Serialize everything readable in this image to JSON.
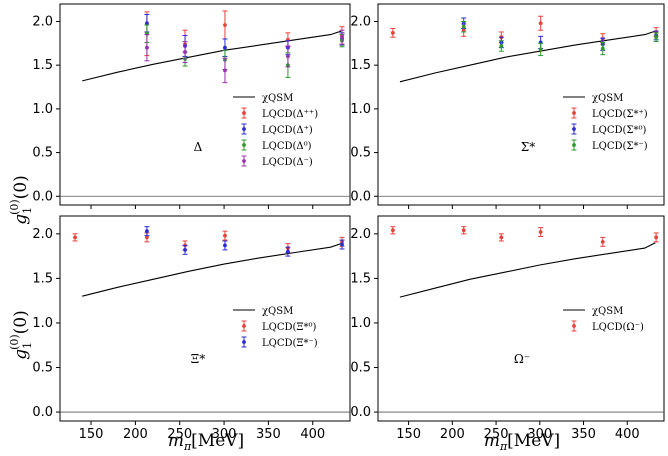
{
  "figure": {
    "ylabel_main": "g",
    "ylabel_sub": "1",
    "ylabel_sup": "(0)",
    "ylabel_arg": "(0)",
    "xlabel_main": "m",
    "xlabel_sub": "π",
    "xlabel_unit": "[MeV]"
  },
  "chart_data": [
    {
      "type": "scatter",
      "panel": "Delta",
      "label": "Δ",
      "xlim": [
        115,
        442
      ],
      "ylim": [
        -0.1,
        2.2
      ],
      "xticks": [
        150,
        200,
        250,
        300,
        350,
        400
      ],
      "yticks": [
        0.0,
        0.5,
        1.0,
        1.5,
        2.0
      ],
      "xtick_labels": [
        "",
        "",
        "",
        "",
        "",
        ""
      ],
      "ytick_labels": [
        "0.0",
        "0.5",
        "1.0",
        "1.5",
        "2.0"
      ],
      "curve": {
        "name": "χQSM",
        "x": [
          140,
          180,
          220,
          260,
          300,
          340,
          380,
          420,
          432
        ],
        "y": [
          1.32,
          1.42,
          1.51,
          1.59,
          1.67,
          1.73,
          1.79,
          1.85,
          1.89
        ]
      },
      "series": [
        {
          "name": "LQCD(Δ⁺⁺)",
          "color": "#e8413c",
          "x": [
            213,
            256,
            301,
            372,
            433
          ],
          "y": [
            1.86,
            1.74,
            1.96,
            1.79,
            1.84
          ],
          "err": [
            0.25,
            0.16,
            0.16,
            0.08,
            0.1
          ]
        },
        {
          "name": "LQCD(Δ⁺)",
          "color": "#2b2bd6",
          "x": [
            213,
            256,
            301,
            372,
            433
          ],
          "y": [
            1.98,
            1.72,
            1.7,
            1.7,
            1.8
          ],
          "err": [
            0.1,
            0.12,
            0.1,
            0.08,
            0.07
          ]
        },
        {
          "name": "LQCD(Δ⁰)",
          "color": "#2e9a2e",
          "x": [
            213,
            256,
            301,
            372,
            433
          ],
          "y": [
            1.86,
            1.57,
            1.56,
            1.5,
            1.78
          ],
          "err": [
            0.1,
            0.08,
            0.11,
            0.14,
            0.07
          ]
        },
        {
          "name": "LQCD(Δ⁻)",
          "color": "#9b30b0",
          "x": [
            213,
            256,
            301,
            372,
            433
          ],
          "y": [
            1.7,
            1.65,
            1.44,
            1.6,
            1.82
          ],
          "err": [
            0.15,
            0.12,
            0.14,
            0.12,
            0.08
          ]
        }
      ]
    },
    {
      "type": "scatter",
      "panel": "SigmaStar",
      "label": "Σ*",
      "xlim": [
        115,
        442
      ],
      "ylim": [
        -0.1,
        2.2
      ],
      "xticks": [
        150,
        200,
        250,
        300,
        350,
        400
      ],
      "yticks": [
        0.0,
        0.5,
        1.0,
        1.5,
        2.0
      ],
      "xtick_labels": [
        "",
        "",
        "",
        "",
        "",
        ""
      ],
      "ytick_labels": [
        "0.0",
        "0.5",
        "1.0",
        "1.5",
        "2.0"
      ],
      "curve": {
        "name": "χQSM",
        "x": [
          140,
          180,
          220,
          260,
          300,
          340,
          380,
          420,
          432
        ],
        "y": [
          1.31,
          1.41,
          1.5,
          1.59,
          1.66,
          1.73,
          1.79,
          1.85,
          1.89
        ]
      },
      "series": [
        {
          "name": "LQCD(Σ*⁺)",
          "color": "#e8413c",
          "x": [
            132,
            213,
            256,
            301,
            372,
            433
          ],
          "y": [
            1.87,
            1.9,
            1.82,
            1.98,
            1.8,
            1.88
          ],
          "err": [
            0.05,
            0.07,
            0.06,
            0.08,
            0.06,
            0.05
          ]
        },
        {
          "name": "LQCD(Σ*⁰)",
          "color": "#2b2bd6",
          "x": [
            213,
            256,
            301,
            372,
            433
          ],
          "y": [
            1.98,
            1.76,
            1.76,
            1.74,
            1.84
          ],
          "err": [
            0.06,
            0.06,
            0.07,
            0.07,
            0.05
          ]
        },
        {
          "name": "LQCD(Σ*⁻)",
          "color": "#2e9a2e",
          "x": [
            213,
            256,
            301,
            372,
            433
          ],
          "y": [
            1.94,
            1.72,
            1.68,
            1.69,
            1.82
          ],
          "err": [
            0.06,
            0.06,
            0.07,
            0.07,
            0.05
          ]
        }
      ]
    },
    {
      "type": "scatter",
      "panel": "XiStar",
      "label": "Ξ*",
      "xlim": [
        115,
        442
      ],
      "ylim": [
        -0.1,
        2.2
      ],
      "xticks": [
        150,
        200,
        250,
        300,
        350,
        400
      ],
      "yticks": [
        0.0,
        0.5,
        1.0,
        1.5,
        2.0
      ],
      "xtick_labels": [
        "150",
        "200",
        "250",
        "300",
        "350",
        "400"
      ],
      "ytick_labels": [
        "0.0",
        "0.5",
        "1.0",
        "1.5",
        "2.0"
      ],
      "curve": {
        "name": "χQSM",
        "x": [
          140,
          180,
          220,
          260,
          300,
          340,
          380,
          420,
          432
        ],
        "y": [
          1.3,
          1.4,
          1.49,
          1.58,
          1.66,
          1.73,
          1.79,
          1.85,
          1.89
        ]
      },
      "series": [
        {
          "name": "LQCD(Ξ*⁰)",
          "color": "#e8413c",
          "x": [
            132,
            213,
            256,
            301,
            372,
            433
          ],
          "y": [
            1.96,
            1.96,
            1.87,
            1.98,
            1.84,
            1.91
          ],
          "err": [
            0.04,
            0.05,
            0.05,
            0.05,
            0.05,
            0.05
          ]
        },
        {
          "name": "LQCD(Ξ*⁻)",
          "color": "#2b2bd6",
          "x": [
            213,
            256,
            301,
            372,
            433
          ],
          "y": [
            2.03,
            1.82,
            1.87,
            1.8,
            1.88
          ],
          "err": [
            0.05,
            0.05,
            0.05,
            0.05,
            0.05
          ]
        }
      ]
    },
    {
      "type": "scatter",
      "panel": "Omega",
      "label": "Ω⁻",
      "xlim": [
        115,
        442
      ],
      "ylim": [
        -0.1,
        2.2
      ],
      "xticks": [
        150,
        200,
        250,
        300,
        350,
        400
      ],
      "yticks": [
        0.0,
        0.5,
        1.0,
        1.5,
        2.0
      ],
      "xtick_labels": [
        "150",
        "200",
        "250",
        "300",
        "350",
        "400"
      ],
      "ytick_labels": [
        "0.0",
        "0.5",
        "1.0",
        "1.5",
        "2.0"
      ],
      "curve": {
        "name": "χQSM",
        "x": [
          140,
          180,
          220,
          260,
          300,
          340,
          380,
          420,
          432
        ],
        "y": [
          1.29,
          1.39,
          1.49,
          1.57,
          1.65,
          1.72,
          1.78,
          1.84,
          1.9
        ]
      },
      "series": [
        {
          "name": "LQCD(Ω⁻)",
          "color": "#e8413c",
          "x": [
            132,
            213,
            256,
            301,
            372,
            433
          ],
          "y": [
            2.04,
            2.04,
            1.96,
            2.02,
            1.91,
            1.96
          ],
          "err": [
            0.04,
            0.04,
            0.04,
            0.05,
            0.05,
            0.05
          ]
        }
      ]
    }
  ]
}
